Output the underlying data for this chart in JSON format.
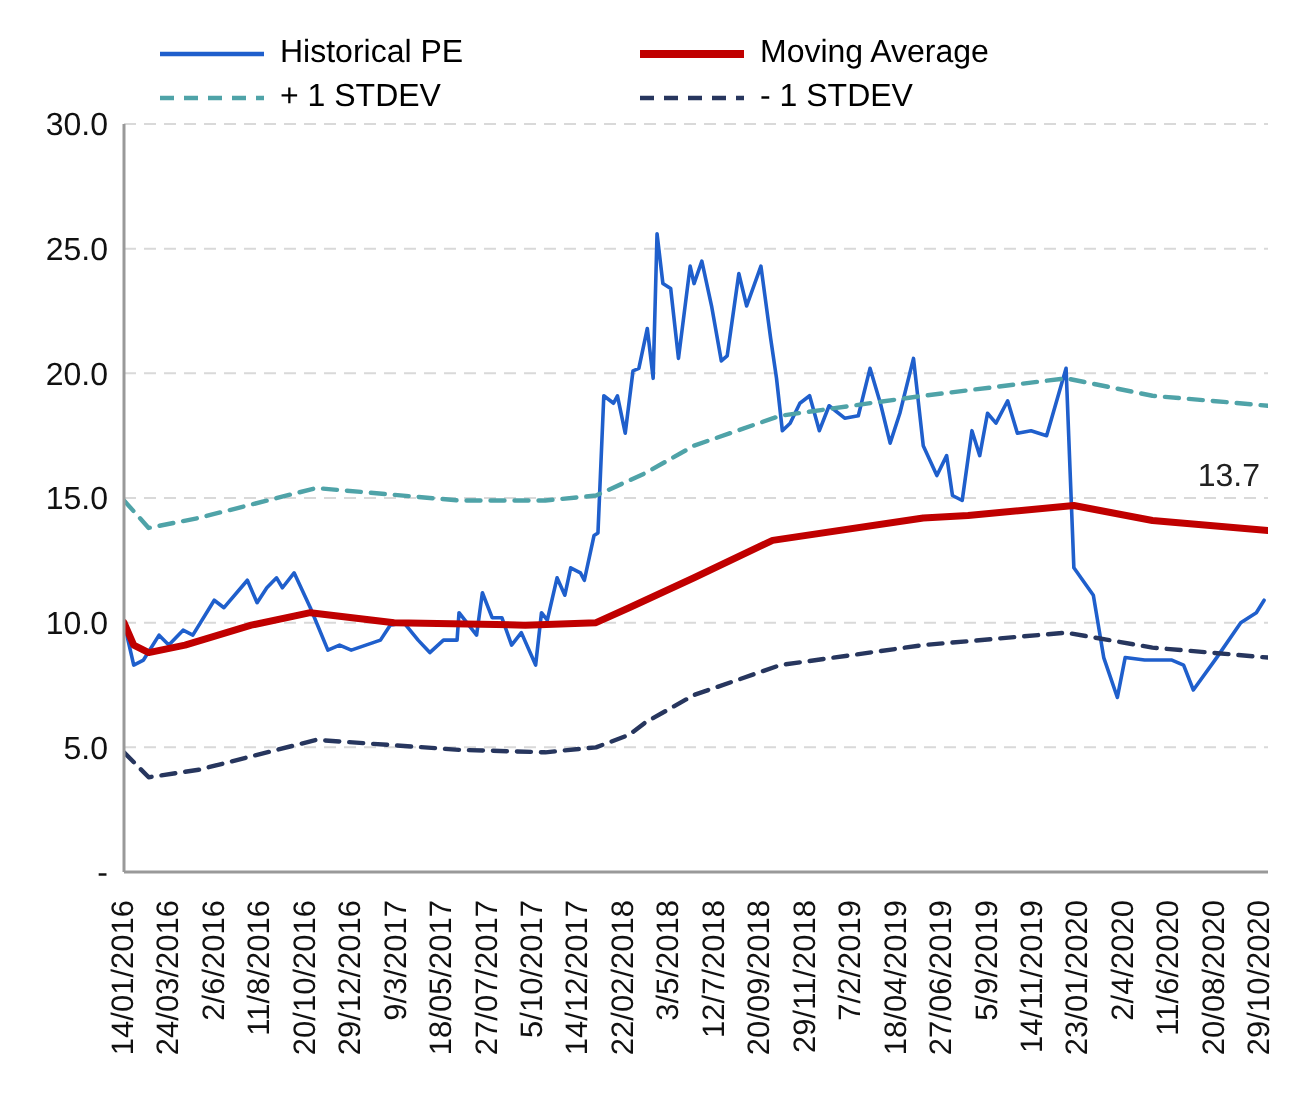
{
  "chart_data": {
    "type": "line",
    "xlim": [
      "2016-01-14",
      "2020-11-10"
    ],
    "xticks": [
      {
        "value": "2016-01-14",
        "label": "14/01/2016"
      },
      {
        "value": "2016-03-24",
        "label": "24/03/2016"
      },
      {
        "value": "2016-06-02",
        "label": "2/6/2016"
      },
      {
        "value": "2016-08-11",
        "label": "11/8/2016"
      },
      {
        "value": "2016-10-20",
        "label": "20/10/2016"
      },
      {
        "value": "2016-12-29",
        "label": "29/12/2016"
      },
      {
        "value": "2017-03-09",
        "label": "9/3/2017"
      },
      {
        "value": "2017-05-18",
        "label": "18/05/2017"
      },
      {
        "value": "2017-07-27",
        "label": "27/07/2017"
      },
      {
        "value": "2017-10-05",
        "label": "5/10/2017"
      },
      {
        "value": "2017-12-14",
        "label": "14/12/2017"
      },
      {
        "value": "2018-02-22",
        "label": "22/02/2018"
      },
      {
        "value": "2018-05-03",
        "label": "3/5/2018"
      },
      {
        "value": "2018-07-12",
        "label": "12/7/2018"
      },
      {
        "value": "2018-09-20",
        "label": "20/09/2018"
      },
      {
        "value": "2018-11-29",
        "label": "29/11/2018"
      },
      {
        "value": "2019-02-07",
        "label": "7/2/2019"
      },
      {
        "value": "2019-04-18",
        "label": "18/04/2019"
      },
      {
        "value": "2019-06-27",
        "label": "27/06/2019"
      },
      {
        "value": "2019-09-05",
        "label": "5/9/2019"
      },
      {
        "value": "2019-11-14",
        "label": "14/11/2019"
      },
      {
        "value": "2020-01-23",
        "label": "23/01/2020"
      },
      {
        "value": "2020-04-02",
        "label": "2/4/2020"
      },
      {
        "value": "2020-06-11",
        "label": "11/6/2020"
      },
      {
        "value": "2020-08-20",
        "label": "20/08/2020"
      },
      {
        "value": "2020-10-29",
        "label": "29/10/2020"
      }
    ],
    "ylim": [
      0,
      30
    ],
    "yticks": [
      {
        "value": 0,
        "label": "-"
      },
      {
        "value": 5,
        "label": "5.0"
      },
      {
        "value": 10,
        "label": "10.0"
      },
      {
        "value": 15,
        "label": "15.0"
      },
      {
        "value": 20,
        "label": "20.0"
      },
      {
        "value": 25,
        "label": "25.0"
      },
      {
        "value": 30,
        "label": "30.0"
      }
    ],
    "grid": "y",
    "legend": "top",
    "annotations": [
      {
        "text": "13.7",
        "x": "2020-11-10",
        "y": 13.7
      }
    ],
    "series": [
      {
        "name": "Historical PE",
        "color": "#1f5fcc",
        "line_style": "solid",
        "x": [
          "2016-01-14",
          "2016-01-29",
          "2016-02-13",
          "2016-03-08",
          "2016-03-23",
          "2016-04-14",
          "2016-04-29",
          "2016-06-01",
          "2016-06-16",
          "2016-07-22",
          "2016-08-06",
          "2016-08-21",
          "2016-09-05",
          "2016-09-14",
          "2016-10-02",
          "2016-10-27",
          "2016-11-23",
          "2016-12-11",
          "2016-12-29",
          "2017-02-12",
          "2017-02-27",
          "2017-03-20",
          "2017-04-11",
          "2017-04-29",
          "2017-05-20",
          "2017-06-10",
          "2017-06-13",
          "2017-07-10",
          "2017-07-19",
          "2017-08-03",
          "2017-08-18",
          "2017-09-02",
          "2017-09-17",
          "2017-10-09",
          "2017-10-18",
          "2017-10-27",
          "2017-11-11",
          "2017-11-23",
          "2017-12-02",
          "2017-12-17",
          "2017-12-23",
          "2018-01-07",
          "2018-01-13",
          "2018-01-22",
          "2018-02-06",
          "2018-02-12",
          "2018-02-24",
          "2018-03-08",
          "2018-03-17",
          "2018-03-30",
          "2018-04-08",
          "2018-04-14",
          "2018-04-23",
          "2018-05-05",
          "2018-05-17",
          "2018-06-04",
          "2018-06-10",
          "2018-06-22",
          "2018-07-07",
          "2018-07-22",
          "2018-07-31",
          "2018-08-18",
          "2018-08-30",
          "2018-09-21",
          "2018-10-06",
          "2018-10-15",
          "2018-10-24",
          "2018-11-05",
          "2018-11-20",
          "2018-12-05",
          "2018-12-20",
          "2019-01-04",
          "2019-01-28",
          "2019-02-18",
          "2019-03-08",
          "2019-03-24",
          "2019-04-08",
          "2019-04-23",
          "2019-05-14",
          "2019-05-29",
          "2019-06-19",
          "2019-07-04",
          "2019-07-13",
          "2019-07-28",
          "2019-08-12",
          "2019-08-24",
          "2019-09-05",
          "2019-09-18",
          "2019-10-06",
          "2019-10-21",
          "2019-11-11",
          "2019-12-05",
          "2020-01-04",
          "2020-01-16",
          "2020-02-15",
          "2020-03-02",
          "2020-03-23",
          "2020-04-04",
          "2020-05-04",
          "2020-06-15",
          "2020-07-03",
          "2020-07-18",
          "2020-08-23",
          "2020-09-29",
          "2020-10-23",
          "2020-11-04"
        ],
        "values": [
          10.0,
          8.3,
          8.5,
          9.5,
          9.1,
          9.7,
          9.5,
          10.9,
          10.6,
          11.7,
          10.8,
          11.4,
          11.8,
          11.4,
          12.0,
          10.6,
          8.9,
          9.1,
          8.9,
          9.3,
          9.9,
          10.0,
          9.3,
          8.8,
          9.3,
          9.3,
          10.4,
          9.5,
          11.2,
          10.2,
          10.2,
          9.1,
          9.6,
          8.3,
          10.4,
          10.1,
          11.8,
          11.1,
          12.2,
          12.0,
          11.7,
          13.5,
          13.6,
          19.1,
          18.8,
          19.1,
          17.6,
          20.1,
          20.2,
          21.8,
          19.8,
          25.6,
          23.6,
          23.4,
          20.6,
          24.3,
          23.6,
          24.5,
          22.7,
          20.5,
          20.7,
          24.0,
          22.7,
          24.3,
          21.4,
          19.8,
          17.7,
          18.0,
          18.8,
          19.1,
          17.7,
          18.7,
          18.2,
          18.3,
          20.2,
          18.8,
          17.2,
          18.4,
          20.6,
          17.1,
          15.9,
          16.7,
          15.1,
          14.9,
          17.7,
          16.7,
          18.4,
          18.0,
          18.9,
          17.6,
          17.7,
          17.5,
          20.2,
          12.2,
          11.1,
          8.6,
          7.0,
          8.6,
          8.5,
          8.5,
          8.3,
          7.3,
          8.6,
          10.0,
          10.4,
          10.9
        ]
      },
      {
        "name": "Moving Average",
        "color": "#c00000",
        "line_style": "solid",
        "x": [
          "2016-01-14",
          "2016-01-29",
          "2016-02-21",
          "2016-04-17",
          "2016-07-28",
          "2016-10-27",
          "2017-03-05",
          "2017-09-23",
          "2018-01-10",
          "2018-03-02",
          "2018-06-10",
          "2018-10-09",
          "2019-05-29",
          "2019-08-06",
          "2020-01-16",
          "2020-05-16",
          "2020-11-10"
        ],
        "values": [
          10.0,
          9.1,
          8.8,
          9.1,
          9.9,
          10.4,
          10.0,
          9.9,
          10.0,
          10.6,
          11.8,
          13.3,
          14.2,
          14.3,
          14.7,
          14.1,
          13.7
        ]
      },
      {
        "name": "+ 1 STDEV",
        "color": "#4fa3a8",
        "line_style": "dashed",
        "x": [
          "2016-01-14",
          "2016-02-21",
          "2016-05-08",
          "2016-11-05",
          "2017-06-13",
          "2017-10-24",
          "2018-01-10",
          "2018-03-02",
          "2018-03-27",
          "2018-06-10",
          "2018-10-21",
          "2019-05-29",
          "2020-01-04",
          "2020-05-16",
          "2020-11-10"
        ],
        "values": [
          14.9,
          13.8,
          14.2,
          15.4,
          14.9,
          14.9,
          15.1,
          15.7,
          16.0,
          17.1,
          18.3,
          19.1,
          19.8,
          19.1,
          18.7
        ]
      },
      {
        "name": "- 1 STDEV",
        "color": "#27365e",
        "line_style": "dashed",
        "x": [
          "2016-01-14",
          "2016-02-21",
          "2016-05-08",
          "2016-11-05",
          "2017-06-13",
          "2017-10-24",
          "2018-01-10",
          "2018-03-02",
          "2018-03-27",
          "2018-06-10",
          "2018-10-21",
          "2019-05-29",
          "2020-01-04",
          "2020-05-16",
          "2020-11-10"
        ],
        "values": [
          4.8,
          3.8,
          4.1,
          5.3,
          4.9,
          4.8,
          5.0,
          5.5,
          6.0,
          7.1,
          8.3,
          9.1,
          9.6,
          9.0,
          8.6
        ]
      }
    ]
  }
}
